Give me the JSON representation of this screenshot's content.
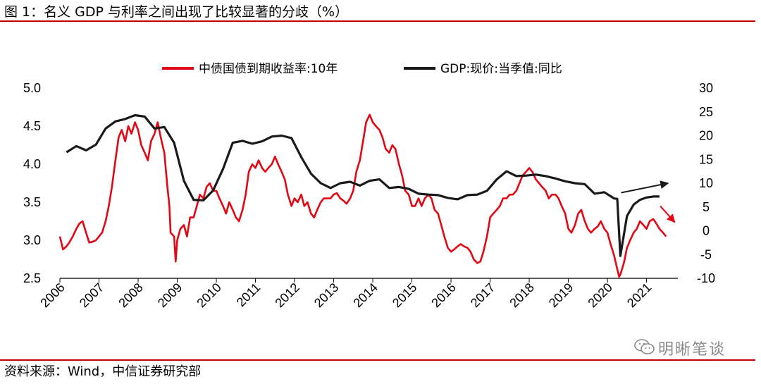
{
  "header": {
    "title": "图 1：名义 GDP 与利率之间出现了比较显著的分歧（%）"
  },
  "footer": {
    "source": "资料来源：Wind，中信证券研究部",
    "watermark": "明晰笔谈",
    "watermark_icon": "wechat-icon"
  },
  "chart_data": {
    "type": "line",
    "title": "",
    "x_ticks": [
      "2006",
      "2007",
      "2008",
      "2009",
      "2010",
      "2011",
      "2012",
      "2013",
      "2014",
      "2015",
      "2016",
      "2017",
      "2018",
      "2019",
      "2020",
      "2021"
    ],
    "x_range": [
      2006.0,
      2021.8
    ],
    "y_left": {
      "ticks": [
        "5.0",
        "4.5",
        "4.0",
        "3.5",
        "3.0",
        "2.5"
      ],
      "range": [
        2.5,
        5.0
      ]
    },
    "y_right": {
      "ticks": [
        "30",
        "25",
        "20",
        "15",
        "10",
        "5",
        "0",
        "-5",
        "-10"
      ],
      "range": [
        -10,
        30
      ]
    },
    "grid": false,
    "legend_position": "top",
    "series": [
      {
        "name": "中债国债到期收益率:10年",
        "axis": "left",
        "color": "#e30613",
        "points": [
          [
            2006.0,
            3.05
          ],
          [
            2006.08,
            2.88
          ],
          [
            2006.17,
            2.92
          ],
          [
            2006.25,
            2.98
          ],
          [
            2006.33,
            3.05
          ],
          [
            2006.42,
            3.15
          ],
          [
            2006.5,
            3.22
          ],
          [
            2006.58,
            3.25
          ],
          [
            2006.67,
            3.1
          ],
          [
            2006.75,
            2.97
          ],
          [
            2006.83,
            2.98
          ],
          [
            2006.92,
            3.0
          ],
          [
            2007.0,
            3.05
          ],
          [
            2007.08,
            3.1
          ],
          [
            2007.17,
            3.25
          ],
          [
            2007.25,
            3.45
          ],
          [
            2007.33,
            3.7
          ],
          [
            2007.42,
            4.05
          ],
          [
            2007.5,
            4.35
          ],
          [
            2007.58,
            4.45
          ],
          [
            2007.67,
            4.3
          ],
          [
            2007.75,
            4.5
          ],
          [
            2007.83,
            4.4
          ],
          [
            2007.92,
            4.55
          ],
          [
            2008.0,
            4.45
          ],
          [
            2008.08,
            4.25
          ],
          [
            2008.17,
            4.15
          ],
          [
            2008.25,
            4.05
          ],
          [
            2008.33,
            4.3
          ],
          [
            2008.42,
            4.4
          ],
          [
            2008.5,
            4.55
          ],
          [
            2008.58,
            4.35
          ],
          [
            2008.67,
            4.15
          ],
          [
            2008.75,
            3.7
          ],
          [
            2008.8,
            3.45
          ],
          [
            2008.83,
            3.1
          ],
          [
            2008.92,
            3.05
          ],
          [
            2008.96,
            2.72
          ],
          [
            2009.0,
            3.0
          ],
          [
            2009.08,
            3.15
          ],
          [
            2009.17,
            3.2
          ],
          [
            2009.25,
            3.05
          ],
          [
            2009.33,
            3.3
          ],
          [
            2009.42,
            3.3
          ],
          [
            2009.5,
            3.45
          ],
          [
            2009.58,
            3.6
          ],
          [
            2009.67,
            3.55
          ],
          [
            2009.75,
            3.7
          ],
          [
            2009.83,
            3.75
          ],
          [
            2009.92,
            3.65
          ],
          [
            2010.0,
            3.65
          ],
          [
            2010.08,
            3.55
          ],
          [
            2010.17,
            3.45
          ],
          [
            2010.25,
            3.35
          ],
          [
            2010.33,
            3.5
          ],
          [
            2010.42,
            3.4
          ],
          [
            2010.5,
            3.3
          ],
          [
            2010.58,
            3.25
          ],
          [
            2010.67,
            3.4
          ],
          [
            2010.75,
            3.6
          ],
          [
            2010.83,
            3.9
          ],
          [
            2010.92,
            4.0
          ],
          [
            2011.0,
            3.95
          ],
          [
            2011.08,
            4.05
          ],
          [
            2011.17,
            3.95
          ],
          [
            2011.25,
            3.9
          ],
          [
            2011.33,
            3.95
          ],
          [
            2011.42,
            4.0
          ],
          [
            2011.5,
            4.1
          ],
          [
            2011.58,
            4.0
          ],
          [
            2011.67,
            3.9
          ],
          [
            2011.75,
            3.8
          ],
          [
            2011.83,
            3.6
          ],
          [
            2011.92,
            3.45
          ],
          [
            2012.0,
            3.55
          ],
          [
            2012.08,
            3.5
          ],
          [
            2012.17,
            3.6
          ],
          [
            2012.25,
            3.45
          ],
          [
            2012.33,
            3.5
          ],
          [
            2012.42,
            3.35
          ],
          [
            2012.5,
            3.3
          ],
          [
            2012.58,
            3.4
          ],
          [
            2012.67,
            3.5
          ],
          [
            2012.75,
            3.55
          ],
          [
            2012.83,
            3.55
          ],
          [
            2012.92,
            3.55
          ],
          [
            2013.0,
            3.6
          ],
          [
            2013.08,
            3.62
          ],
          [
            2013.17,
            3.55
          ],
          [
            2013.25,
            3.52
          ],
          [
            2013.33,
            3.48
          ],
          [
            2013.42,
            3.55
          ],
          [
            2013.5,
            3.65
          ],
          [
            2013.58,
            3.9
          ],
          [
            2013.67,
            4.05
          ],
          [
            2013.75,
            4.3
          ],
          [
            2013.83,
            4.55
          ],
          [
            2013.92,
            4.65
          ],
          [
            2014.0,
            4.55
          ],
          [
            2014.08,
            4.5
          ],
          [
            2014.17,
            4.45
          ],
          [
            2014.25,
            4.35
          ],
          [
            2014.33,
            4.2
          ],
          [
            2014.42,
            4.15
          ],
          [
            2014.5,
            4.25
          ],
          [
            2014.58,
            4.2
          ],
          [
            2014.67,
            4.0
          ],
          [
            2014.75,
            3.85
          ],
          [
            2014.83,
            3.65
          ],
          [
            2014.92,
            3.6
          ],
          [
            2015.0,
            3.45
          ],
          [
            2015.08,
            3.45
          ],
          [
            2015.17,
            3.55
          ],
          [
            2015.25,
            3.45
          ],
          [
            2015.33,
            3.55
          ],
          [
            2015.42,
            3.6
          ],
          [
            2015.5,
            3.55
          ],
          [
            2015.58,
            3.4
          ],
          [
            2015.67,
            3.35
          ],
          [
            2015.75,
            3.2
          ],
          [
            2015.83,
            3.05
          ],
          [
            2015.92,
            2.9
          ],
          [
            2016.0,
            2.85
          ],
          [
            2016.08,
            2.88
          ],
          [
            2016.17,
            2.92
          ],
          [
            2016.25,
            2.95
          ],
          [
            2016.33,
            2.92
          ],
          [
            2016.42,
            2.9
          ],
          [
            2016.5,
            2.85
          ],
          [
            2016.58,
            2.75
          ],
          [
            2016.67,
            2.7
          ],
          [
            2016.75,
            2.72
          ],
          [
            2016.83,
            2.85
          ],
          [
            2016.92,
            3.05
          ],
          [
            2017.0,
            3.3
          ],
          [
            2017.08,
            3.35
          ],
          [
            2017.17,
            3.4
          ],
          [
            2017.25,
            3.45
          ],
          [
            2017.33,
            3.55
          ],
          [
            2017.42,
            3.55
          ],
          [
            2017.5,
            3.6
          ],
          [
            2017.58,
            3.6
          ],
          [
            2017.67,
            3.65
          ],
          [
            2017.75,
            3.75
          ],
          [
            2017.83,
            3.85
          ],
          [
            2017.92,
            3.9
          ],
          [
            2018.0,
            3.95
          ],
          [
            2018.08,
            3.9
          ],
          [
            2018.17,
            3.8
          ],
          [
            2018.25,
            3.75
          ],
          [
            2018.33,
            3.7
          ],
          [
            2018.42,
            3.65
          ],
          [
            2018.5,
            3.55
          ],
          [
            2018.58,
            3.6
          ],
          [
            2018.67,
            3.6
          ],
          [
            2018.75,
            3.55
          ],
          [
            2018.83,
            3.45
          ],
          [
            2018.92,
            3.35
          ],
          [
            2019.0,
            3.15
          ],
          [
            2019.08,
            3.1
          ],
          [
            2019.17,
            3.2
          ],
          [
            2019.25,
            3.35
          ],
          [
            2019.33,
            3.4
          ],
          [
            2019.42,
            3.25
          ],
          [
            2019.5,
            3.15
          ],
          [
            2019.58,
            3.1
          ],
          [
            2019.67,
            3.15
          ],
          [
            2019.75,
            3.18
          ],
          [
            2019.83,
            3.25
          ],
          [
            2019.92,
            3.15
          ],
          [
            2020.0,
            3.1
          ],
          [
            2020.08,
            2.95
          ],
          [
            2020.17,
            2.8
          ],
          [
            2020.25,
            2.62
          ],
          [
            2020.3,
            2.52
          ],
          [
            2020.33,
            2.55
          ],
          [
            2020.42,
            2.7
          ],
          [
            2020.5,
            2.9
          ],
          [
            2020.58,
            3.0
          ],
          [
            2020.67,
            3.1
          ],
          [
            2020.75,
            3.15
          ],
          [
            2020.83,
            3.25
          ],
          [
            2020.92,
            3.2
          ],
          [
            2021.0,
            3.15
          ],
          [
            2021.08,
            3.25
          ],
          [
            2021.17,
            3.28
          ],
          [
            2021.25,
            3.22
          ],
          [
            2021.33,
            3.15
          ],
          [
            2021.42,
            3.1
          ],
          [
            2021.5,
            3.05
          ]
        ]
      },
      {
        "name": "GDP:现价:当季值:同比",
        "axis": "right",
        "color": "#1a1a1a",
        "points": [
          [
            2006.17,
            16.5
          ],
          [
            2006.42,
            17.8
          ],
          [
            2006.67,
            16.9
          ],
          [
            2006.92,
            18.1
          ],
          [
            2007.17,
            21.5
          ],
          [
            2007.42,
            23.0
          ],
          [
            2007.67,
            23.5
          ],
          [
            2007.92,
            24.3
          ],
          [
            2008.17,
            24.0
          ],
          [
            2008.42,
            21.5
          ],
          [
            2008.67,
            21.8
          ],
          [
            2008.92,
            18.5
          ],
          [
            2009.17,
            10.5
          ],
          [
            2009.42,
            6.5
          ],
          [
            2009.67,
            6.4
          ],
          [
            2009.92,
            8.5
          ],
          [
            2010.17,
            13.0
          ],
          [
            2010.42,
            18.5
          ],
          [
            2010.67,
            18.9
          ],
          [
            2010.92,
            18.3
          ],
          [
            2011.17,
            18.8
          ],
          [
            2011.42,
            19.8
          ],
          [
            2011.67,
            20.0
          ],
          [
            2011.92,
            19.5
          ],
          [
            2012.17,
            15.5
          ],
          [
            2012.42,
            12.0
          ],
          [
            2012.67,
            10.0
          ],
          [
            2012.92,
            9.0
          ],
          [
            2013.17,
            10.0
          ],
          [
            2013.42,
            10.3
          ],
          [
            2013.67,
            9.5
          ],
          [
            2013.92,
            10.5
          ],
          [
            2014.17,
            10.8
          ],
          [
            2014.42,
            9.0
          ],
          [
            2014.67,
            9.2
          ],
          [
            2014.92,
            8.8
          ],
          [
            2015.17,
            7.8
          ],
          [
            2015.42,
            7.6
          ],
          [
            2015.67,
            7.5
          ],
          [
            2015.92,
            6.9
          ],
          [
            2016.17,
            6.6
          ],
          [
            2016.42,
            7.5
          ],
          [
            2016.67,
            7.6
          ],
          [
            2016.92,
            8.4
          ],
          [
            2017.17,
            10.8
          ],
          [
            2017.42,
            12.5
          ],
          [
            2017.67,
            11.5
          ],
          [
            2017.92,
            11.6
          ],
          [
            2018.17,
            11.8
          ],
          [
            2018.42,
            11.5
          ],
          [
            2018.67,
            11.0
          ],
          [
            2018.92,
            10.4
          ],
          [
            2019.17,
            10.0
          ],
          [
            2019.42,
            9.8
          ],
          [
            2019.67,
            7.8
          ],
          [
            2019.92,
            8.1
          ],
          [
            2020.17,
            6.8
          ],
          [
            2020.25,
            6.7
          ],
          [
            2020.33,
            -5.3
          ],
          [
            2020.5,
            3.1
          ],
          [
            2020.67,
            5.5
          ],
          [
            2020.83,
            6.5
          ],
          [
            2021.0,
            7.0
          ],
          [
            2021.17,
            7.2
          ],
          [
            2021.33,
            7.2
          ]
        ]
      }
    ],
    "annotations": [
      {
        "type": "arrow",
        "color": "#1a1a1a",
        "from": [
          2020.35,
          8.0
        ],
        "to": [
          2021.55,
          10.0
        ]
      },
      {
        "type": "arrow",
        "color": "#e30613",
        "from": [
          2021.35,
          5.2
        ],
        "to": [
          2021.72,
          1.8
        ]
      }
    ]
  }
}
